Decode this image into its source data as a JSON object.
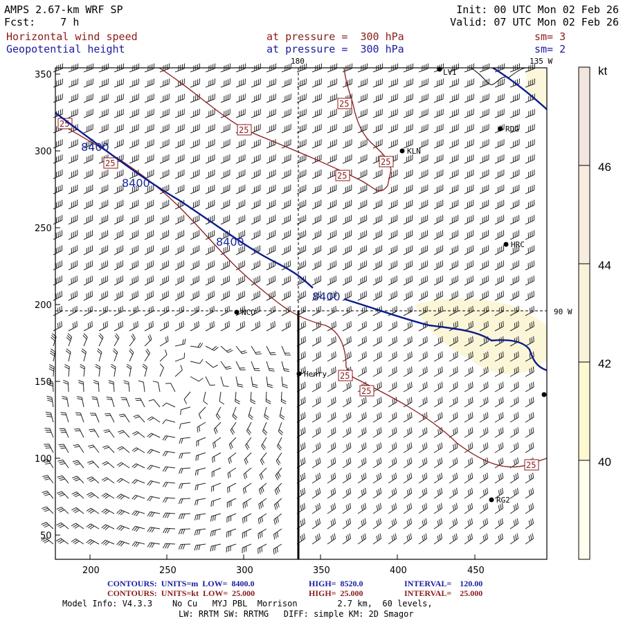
{
  "header": {
    "model": "AMPS 2.67-km WRF SP",
    "forecast": "Fcst:    7 h",
    "init": "Init: 00 UTC Mon 02 Feb 26",
    "valid": "Valid: 07 UTC Mon 02 Feb 26",
    "field1_name": "Horizontal wind speed",
    "field1_level": "at pressure =  300 hPa",
    "field1_smooth": "sm= 3",
    "field2_name": "Geopotential height",
    "field2_level": "at pressure =  300 hPa",
    "field2_smooth": "sm= 2"
  },
  "map": {
    "x_ticks": [
      "200",
      "250",
      "300",
      "350",
      "400",
      "450"
    ],
    "y_ticks": [
      "350",
      "300",
      "250",
      "200",
      "150",
      "100",
      "50"
    ],
    "meridian_top": "180",
    "meridian_right": "135 W",
    "parallel_right": "90 W",
    "stations": [
      {
        "id": "stn-kln",
        "label": "KLN"
      },
      {
        "id": "stn-rdg",
        "label": "RDG"
      },
      {
        "id": "stn-hrc",
        "label": "HRC"
      },
      {
        "id": "stn-nco",
        "label": "NCO"
      },
      {
        "id": "stn-henry",
        "label": "Henry"
      },
      {
        "id": "stn-rg2",
        "label": "RG2"
      },
      {
        "id": "stn-top",
        "label": "LVI"
      }
    ],
    "height_contour_label": "8400",
    "speed_contour_label": "25"
  },
  "colorbar": {
    "units": "kt",
    "levels": [
      "46",
      "44",
      "42",
      "40"
    ],
    "colors": [
      "#fffff0",
      "#fdf8d2",
      "#faf3dc",
      "#f7ecdf",
      "#f2e4de"
    ]
  },
  "footer": {
    "line1_label": "CONTOURS:  UNITS=m  LOW=  8400.0",
    "line1_high": "HIGH=  8520.0",
    "line1_interval": "INTERVAL=    120.00",
    "line2_label": "CONTOURS:  UNITS=kt  LOW=  25.000",
    "line2_high": "HIGH=  25.000",
    "line2_interval": "INTERVAL=    25.000",
    "model_info": "Model Info: V4.3.3    No Cu   MYJ PBL  Morrison        2.7 km,  60 levels,",
    "model_info2": "LW: RRTM SW: RRTMG   DIFF: simple KM: 2D Smagor"
  },
  "colors": {
    "height_contour": "#0d1c8c",
    "speed_contour": "#8b1a1a",
    "axes": "#000000"
  }
}
